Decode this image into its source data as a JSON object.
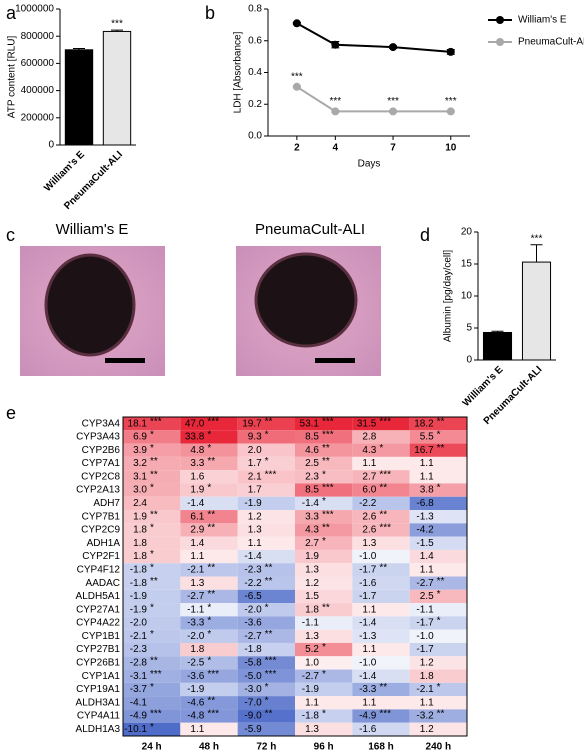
{
  "chart_data": [
    {
      "type": "bar",
      "label": "a",
      "ylabel": "ATP content [RLU]",
      "categories": [
        "William's E",
        "PneumaCult-ALI"
      ],
      "values": [
        700000,
        835000
      ],
      "errors": [
        10000,
        10000
      ],
      "annotations": [
        null,
        "***"
      ],
      "colors": [
        "#000000",
        "#e6e6e6"
      ],
      "ylim": [
        0,
        1000000
      ],
      "yticks": [
        0,
        200000,
        400000,
        600000,
        800000,
        1000000
      ]
    },
    {
      "type": "line",
      "label": "b",
      "ylabel": "LDH [Absorbance]",
      "xlabel": "Days",
      "x": [
        2,
        4,
        7,
        10
      ],
      "xlim": [
        0.5,
        11
      ],
      "xticks": [
        2,
        4,
        7,
        10
      ],
      "ylim": [
        0,
        0.8
      ],
      "yticks": [
        {
          "value": 0,
          "label": "0.0"
        },
        0.2,
        0.4,
        0.6,
        0.8
      ],
      "series": [
        {
          "name": "William's E",
          "color": "#000000",
          "values": [
            0.71,
            0.575,
            0.56,
            0.53
          ],
          "errors": [
            0.005,
            0.02,
            0.008,
            0.015
          ],
          "annotations": [
            null,
            null,
            null,
            null
          ]
        },
        {
          "name": "PneumaCult-ALI",
          "color": "#a9a9a9",
          "values": [
            0.31,
            0.155,
            0.155,
            0.155
          ],
          "errors": [
            0.005,
            0.005,
            0.005,
            0.005
          ],
          "annotations": [
            "***",
            "***",
            "***",
            "***"
          ]
        }
      ]
    },
    {
      "type": "bar",
      "label": "d",
      "ylabel": "Albumin [pg/day/cell]",
      "categories": [
        "William's E",
        "PneumaCult-ALI"
      ],
      "values": [
        4.3,
        15.3
      ],
      "errors": [
        0.2,
        2.7
      ],
      "annotations": [
        null,
        "***"
      ],
      "colors": [
        "#000000",
        "#e6e6e6"
      ],
      "ylim": [
        0,
        20
      ],
      "yticks": [
        0,
        5,
        10,
        15,
        20
      ]
    },
    {
      "type": "heatmap",
      "label": "e",
      "colors": {
        "positive": "#e8283a",
        "negative": "#4f6cc9"
      },
      "columns": [
        "24 h",
        "48 h",
        "72 h",
        "96 h",
        "168 h",
        "240 h"
      ],
      "rows": [
        "CYP3A4",
        "CYP3A43",
        "CYP2B6",
        "CYP7A1",
        "CYP2C8",
        "CYP2A13",
        "ADH7",
        "CYP7B1",
        "CYP2C9",
        "ADH1A",
        "CYP2F1",
        "CYP4F12",
        "AADAC",
        "ALDH5A1",
        "CYP27A1",
        "CYP4A22",
        "CYP1B1",
        "CYP27B1",
        "CYP26B1",
        "CYP1A1",
        "CYP19A1",
        "ALDH3A1",
        "CYP4A11",
        "ALDH1A3"
      ],
      "values": [
        [
          18.1,
          47.0,
          19.7,
          53.1,
          31.5,
          18.2
        ],
        [
          6.9,
          33.8,
          9.3,
          8.5,
          2.8,
          5.5
        ],
        [
          3.9,
          4.8,
          2.0,
          4.6,
          4.3,
          16.7
        ],
        [
          3.2,
          3.3,
          1.7,
          2.5,
          1.1,
          1.1
        ],
        [
          3.1,
          1.6,
          2.1,
          2.3,
          2.7,
          1.1
        ],
        [
          3.0,
          1.9,
          1.7,
          8.5,
          6.0,
          3.8
        ],
        [
          2.4,
          -1.4,
          -1.9,
          -1.4,
          -2.2,
          -6.8
        ],
        [
          1.9,
          6.1,
          1.2,
          3.3,
          2.6,
          -1.3
        ],
        [
          1.8,
          2.9,
          1.3,
          4.3,
          2.6,
          -4.2
        ],
        [
          1.8,
          1.4,
          1.1,
          2.7,
          1.3,
          -1.5
        ],
        [
          1.8,
          1.1,
          -1.4,
          1.9,
          -1.0,
          1.4
        ],
        [
          -1.8,
          -2.1,
          -2.3,
          1.3,
          -1.7,
          1.1
        ],
        [
          -1.8,
          1.3,
          -2.2,
          1.2,
          -1.6,
          -2.7
        ],
        [
          -1.9,
          -2.7,
          -6.5,
          1.5,
          -1.7,
          2.5
        ],
        [
          -1.9,
          -1.1,
          -2.0,
          1.8,
          1.1,
          -1.1
        ],
        [
          -2.0,
          -3.3,
          -3.6,
          -1.1,
          -1.4,
          -1.7
        ],
        [
          -2.1,
          -2.0,
          -2.7,
          1.3,
          -1.3,
          -1.0
        ],
        [
          -2.3,
          1.8,
          -1.8,
          5.2,
          1.1,
          -1.7
        ],
        [
          -2.8,
          -2.5,
          -5.8,
          1.0,
          -1.0,
          1.2
        ],
        [
          -3.1,
          -3.6,
          -5.0,
          -2.7,
          -1.4,
          1.8
        ],
        [
          -3.7,
          -1.9,
          -3.0,
          -1.9,
          -3.3,
          -2.1
        ],
        [
          -4.1,
          -4.6,
          -7.0,
          1.1,
          1.1,
          1.1
        ],
        [
          -4.9,
          -4.8,
          -9.0,
          -1.8,
          -4.9,
          -3.2
        ],
        [
          -10.1,
          1.1,
          -5.9,
          1.3,
          -1.6,
          1.2
        ]
      ],
      "value_labels": [
        [
          "18.1",
          "47.0",
          "19.7",
          "53.1",
          "31.5",
          "18.2"
        ],
        [
          "6.9",
          "33.8",
          "9.3",
          "8.5",
          "2.8",
          "5.5"
        ],
        [
          "3.9",
          "4.8",
          "2.0",
          "4.6",
          "4.3",
          "16.7"
        ],
        [
          "3.2",
          "3.3",
          "1.7",
          "2.5",
          "1.1",
          "1.1"
        ],
        [
          "3.1",
          "1.6",
          "2.1",
          "2.3",
          "2.7",
          "1.1"
        ],
        [
          "3.0",
          "1.9",
          "1.7",
          "8.5",
          "6.0",
          "3.8"
        ],
        [
          "2.4",
          "-1.4",
          "-1.9",
          "-1.4",
          "-2.2",
          "-6.8"
        ],
        [
          "1.9",
          "6.1",
          "1.2",
          "3.3",
          "2.6",
          "-1.3"
        ],
        [
          "1.8",
          "2.9",
          "1.3",
          "4.3",
          "2.6",
          "-4.2"
        ],
        [
          "1.8",
          "1.4",
          "1.1",
          "2.7",
          "1.3",
          "-1.5"
        ],
        [
          "1.8",
          "1.1",
          "-1.4",
          "1.9",
          "-1.0",
          "1.4"
        ],
        [
          "-1.8",
          "-2.1",
          "-2.3",
          "1.3",
          "-1.7",
          "1.1"
        ],
        [
          "-1.8",
          "1.3",
          "-2.2",
          "1.2",
          "-1.6",
          "-2.7"
        ],
        [
          "-1.9",
          "-2.7",
          "-6.5",
          "1.5",
          "-1.7",
          "2.5"
        ],
        [
          "-1.9",
          "-1.1",
          "-2.0",
          "1.8",
          "1.1",
          "-1.1"
        ],
        [
          "-2.0",
          "-3.3",
          "-3.6",
          "-1.1",
          "-1.4",
          "-1.7"
        ],
        [
          "-2.1",
          "-2.0",
          "-2.7",
          "1.3",
          "-1.3",
          "-1.0"
        ],
        [
          "-2.3",
          "1.8",
          "-1.8",
          "5.2",
          "1.1",
          "-1.7"
        ],
        [
          "-2.8",
          "-2.5",
          "-5.8",
          "1.0",
          "-1.0",
          "1.2"
        ],
        [
          "-3.1",
          "-3.6",
          "-5.0",
          "-2.7",
          "-1.4",
          "1.8"
        ],
        [
          "-3.7",
          "-1.9",
          "-3.0",
          "-1.9",
          "-3.3",
          "-2.1"
        ],
        [
          "-4.1",
          "-4.6",
          "-7.0",
          "1.1",
          "1.1",
          "1.1"
        ],
        [
          "-4.9",
          "-4.8",
          "-9.0",
          "-1.8",
          "-4.9",
          "-3.2"
        ],
        [
          "-10.1",
          "1.1",
          "-5.9",
          "1.3",
          "-1.6",
          "1.2"
        ]
      ],
      "stars": [
        [
          "***",
          "***",
          "**",
          "***",
          "***",
          "**"
        ],
        [
          "*",
          "*",
          "*",
          "***",
          null,
          "*"
        ],
        [
          "*",
          "*",
          null,
          "**",
          "*",
          "**"
        ],
        [
          "**",
          "**",
          "*",
          "**",
          null,
          null
        ],
        [
          "**",
          null,
          "***",
          "*",
          "***",
          null
        ],
        [
          "*",
          "*",
          null,
          "***",
          "**",
          "*"
        ],
        [
          null,
          null,
          null,
          "*",
          null,
          null
        ],
        [
          "**",
          "**",
          null,
          "***",
          "**",
          null
        ],
        [
          "*",
          "**",
          null,
          "**",
          "***",
          null
        ],
        [
          null,
          null,
          null,
          "*",
          null,
          null
        ],
        [
          "*",
          null,
          null,
          null,
          null,
          null
        ],
        [
          "*",
          "**",
          "**",
          null,
          "**",
          null
        ],
        [
          "**",
          null,
          "**",
          null,
          null,
          "**"
        ],
        [
          null,
          "**",
          null,
          null,
          null,
          "*"
        ],
        [
          "*",
          "*",
          "*",
          "**",
          null,
          null
        ],
        [
          null,
          "*",
          null,
          null,
          null,
          "*"
        ],
        [
          "*",
          "*",
          "**",
          null,
          null,
          null
        ],
        [
          null,
          null,
          null,
          "*",
          null,
          null
        ],
        [
          "**",
          "*",
          "***",
          null,
          null,
          null
        ],
        [
          "***",
          "***",
          "***",
          "*",
          null,
          null
        ],
        [
          "*",
          null,
          "*",
          null,
          "**",
          "*"
        ],
        [
          null,
          "**",
          "*",
          null,
          null,
          null
        ],
        [
          "***",
          "***",
          "**",
          "*",
          "***",
          "**"
        ],
        [
          "*",
          null,
          null,
          null,
          null,
          null
        ]
      ]
    }
  ],
  "panel_c": {
    "label": "c",
    "captions": [
      "William's E",
      "PneumaCult-ALI"
    ]
  }
}
